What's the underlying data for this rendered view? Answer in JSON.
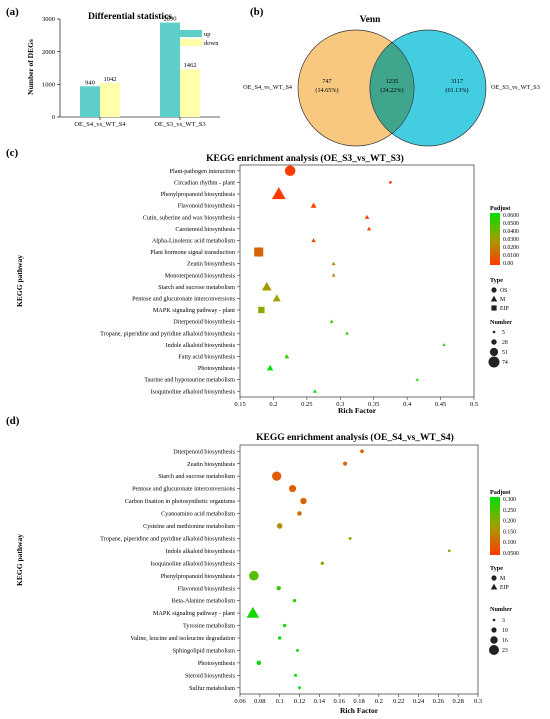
{
  "panels": {
    "a": "(a)",
    "b": "(b)",
    "c": "(c)",
    "d": "(d)"
  },
  "chart_data": [
    {
      "type": "bar",
      "title": "Differential statistics",
      "ylabel": "Number of DEGs",
      "categories": [
        "OE_S4_vs_WT_S4",
        "OE_S3_vs_WT_S3"
      ],
      "series": [
        {
          "name": "up",
          "values": [
            940,
            2890
          ],
          "color": "#5ecfc8"
        },
        {
          "name": "down",
          "values": [
            1042,
            1462
          ],
          "color": "#ffffaa"
        }
      ],
      "ylim": [
        0,
        3000
      ],
      "yticks": [
        0,
        1000,
        2000,
        3000
      ],
      "legend": "top-right"
    },
    {
      "type": "venn",
      "title": "Venn",
      "sets": [
        {
          "name": "OE_S4_vs_WT_S4",
          "only": "747",
          "pct": "(14.65%)",
          "color": "#f8c57a"
        },
        {
          "name": "OE_S3_vs_WT_S3",
          "only": "3117",
          "pct": "(61.13%)",
          "color": "#22c4dc"
        }
      ],
      "overlap": {
        "count": "1235",
        "pct": "(24.22%)"
      }
    },
    {
      "type": "scatter",
      "title": "KEGG enrichment analysis (OE_S3_vs_WT_S3)",
      "xlabel": "Rich Factor",
      "ylabel": "KEGG pathway",
      "xlim": [
        0.15,
        0.5
      ],
      "xticks": [
        "0.15",
        "0.2",
        "0.25",
        "0.3",
        "0.35",
        "0.4",
        "0.45",
        "0.5"
      ],
      "padj_title": "Padjust",
      "padj_ticks": [
        "0.0600",
        "0.0500",
        "0.0400",
        "0.0300",
        "0.0200",
        "0.0100",
        "0.00"
      ],
      "type_title": "Type",
      "types": [
        {
          "code": "OS",
          "shape": "circle"
        },
        {
          "code": "M",
          "shape": "triangle"
        },
        {
          "code": "EIP",
          "shape": "square"
        }
      ],
      "number_title": "Number",
      "numbers": [
        5,
        28,
        51,
        74
      ],
      "points": [
        {
          "pathway": "Plant-pathogen interaction",
          "x": 0.225,
          "n": 70,
          "type": "OS",
          "padj": 0.0
        },
        {
          "pathway": "Circadian rhythm - plant",
          "x": 0.375,
          "n": 6,
          "type": "OS",
          "padj": 0.002
        },
        {
          "pathway": "Phenylpropanoid biosynthesis",
          "x": 0.208,
          "n": 74,
          "type": "M",
          "padj": 0.0
        },
        {
          "pathway": "Flavonoid biosynthesis",
          "x": 0.26,
          "n": 22,
          "type": "M",
          "padj": 0.002
        },
        {
          "pathway": "Cutin, suberine and wax biosynthesis",
          "x": 0.34,
          "n": 14,
          "type": "M",
          "padj": 0.002
        },
        {
          "pathway": "Carotenoid biosynthesis",
          "x": 0.343,
          "n": 12,
          "type": "M",
          "padj": 0.004
        },
        {
          "pathway": "Alpha-Linolenic acid metabolism",
          "x": 0.26,
          "n": 14,
          "type": "M",
          "padj": 0.008
        },
        {
          "pathway": "Plant hormone signal transduction",
          "x": 0.178,
          "n": 58,
          "type": "EIP",
          "padj": 0.012
        },
        {
          "pathway": "Zeatin biosynthesis",
          "x": 0.29,
          "n": 10,
          "type": "M",
          "padj": 0.022
        },
        {
          "pathway": "Monoterpenoid biosynthesis",
          "x": 0.29,
          "n": 9,
          "type": "M",
          "padj": 0.024
        },
        {
          "pathway": "Starch and sucrose metabolism",
          "x": 0.19,
          "n": 48,
          "type": "M",
          "padj": 0.028
        },
        {
          "pathway": "Pentose and glucuronate interconversions",
          "x": 0.205,
          "n": 36,
          "type": "M",
          "padj": 0.03
        },
        {
          "pathway": "MAPK signaling pathway - plant",
          "x": 0.182,
          "n": 36,
          "type": "EIP",
          "padj": 0.034
        },
        {
          "pathway": "Diterpenoid biosynthesis",
          "x": 0.287,
          "n": 9,
          "type": "M",
          "padj": 0.05
        },
        {
          "pathway": "Tropane, piperidine and pyridine alkaloid biosynthesis",
          "x": 0.31,
          "n": 8,
          "type": "M",
          "padj": 0.05
        },
        {
          "pathway": "Indole alkaloid biosynthesis",
          "x": 0.455,
          "n": 5,
          "type": "M",
          "padj": 0.055
        },
        {
          "pathway": "Fatty acid biosynthesis",
          "x": 0.22,
          "n": 16,
          "type": "M",
          "padj": 0.05
        },
        {
          "pathway": "Photosynthesis",
          "x": 0.195,
          "n": 26,
          "type": "M",
          "padj": 0.06
        },
        {
          "pathway": "Taurine and hypotaurine metabolism",
          "x": 0.415,
          "n": 5,
          "type": "M",
          "padj": 0.055
        },
        {
          "pathway": "Isoquinoline alkaloid biosynthesis",
          "x": 0.262,
          "n": 10,
          "type": "M",
          "padj": 0.058
        }
      ]
    },
    {
      "type": "scatter",
      "title": "KEGG enrichment analysis (OE_S4_vs_WT_S4)",
      "xlabel": "Rich Factor",
      "ylabel": "KEGG pathway",
      "xlim": [
        0.06,
        0.3
      ],
      "xticks": [
        "0.06",
        "0.08",
        "0.1",
        "0.12",
        "0.14",
        "0.16",
        "0.18",
        "0.2",
        "0.22",
        "0.24",
        "0.26",
        "0.28",
        "0.3"
      ],
      "padj_title": "Padjust",
      "padj_ticks": [
        "0.300",
        "0.250",
        "0.200",
        "0.150",
        "0.100",
        "0.0500"
      ],
      "type_title": "Type",
      "types": [
        {
          "code": "M",
          "shape": "circle"
        },
        {
          "code": "EIP",
          "shape": "triangle"
        }
      ],
      "number_title": "Number",
      "numbers": [
        3,
        10,
        16,
        23
      ],
      "points": [
        {
          "pathway": "Diterpenoid biosynthesis",
          "x": 0.183,
          "n": 6,
          "type": "M",
          "padj": 0.06
        },
        {
          "pathway": "Zeatin biosynthesis",
          "x": 0.166,
          "n": 7,
          "type": "M",
          "padj": 0.06
        },
        {
          "pathway": "Starch and sucrose metabolism",
          "x": 0.097,
          "n": 21,
          "type": "M",
          "padj": 0.05
        },
        {
          "pathway": "Pentose and glucuronate interconversions",
          "x": 0.113,
          "n": 15,
          "type": "M",
          "padj": 0.05
        },
        {
          "pathway": "Carbon fixation in photosynthetic organisms",
          "x": 0.124,
          "n": 13,
          "type": "M",
          "padj": 0.06
        },
        {
          "pathway": "Cyanoamino acid metabolism",
          "x": 0.12,
          "n": 8,
          "type": "M",
          "padj": 0.07
        },
        {
          "pathway": "Cysteine and methionine metabolism",
          "x": 0.1,
          "n": 11,
          "type": "M",
          "padj": 0.12
        },
        {
          "pathway": "Tropane, piperidine and pyridine alkaloid biosynthesis",
          "x": 0.171,
          "n": 4,
          "type": "M",
          "padj": 0.15
        },
        {
          "pathway": "Indole alkaloid biosynthesis",
          "x": 0.271,
          "n": 3,
          "type": "M",
          "padj": 0.14
        },
        {
          "pathway": "Isoquinoline alkaloid biosynthesis",
          "x": 0.143,
          "n": 5,
          "type": "M",
          "padj": 0.18
        },
        {
          "pathway": "Phenylpropanoid biosynthesis",
          "x": 0.074,
          "n": 22,
          "type": "M",
          "padj": 0.22
        },
        {
          "pathway": "Flavonoid biosynthesis",
          "x": 0.099,
          "n": 8,
          "type": "M",
          "padj": 0.23
        },
        {
          "pathway": "Beta-Alanine metabolism",
          "x": 0.115,
          "n": 5,
          "type": "M",
          "padj": 0.26
        },
        {
          "pathway": "MAPK signaling pathway - plant",
          "x": 0.073,
          "n": 23,
          "type": "EIP",
          "padj": 0.28
        },
        {
          "pathway": "Tyrosine metabolism",
          "x": 0.105,
          "n": 5,
          "type": "M",
          "padj": 0.29
        },
        {
          "pathway": "Valine, leucine and isoleucine degradation",
          "x": 0.1,
          "n": 5,
          "type": "M",
          "padj": 0.29
        },
        {
          "pathway": "Sphingolipid metabolism",
          "x": 0.118,
          "n": 4,
          "type": "M",
          "padj": 0.29
        },
        {
          "pathway": "Photosynthesis",
          "x": 0.079,
          "n": 8,
          "type": "M",
          "padj": 0.3
        },
        {
          "pathway": "Steroid biosynthesis",
          "x": 0.116,
          "n": 4,
          "type": "M",
          "padj": 0.3
        },
        {
          "pathway": "Sulfur metabolism",
          "x": 0.12,
          "n": 4,
          "type": "M",
          "padj": 0.3
        }
      ]
    }
  ]
}
